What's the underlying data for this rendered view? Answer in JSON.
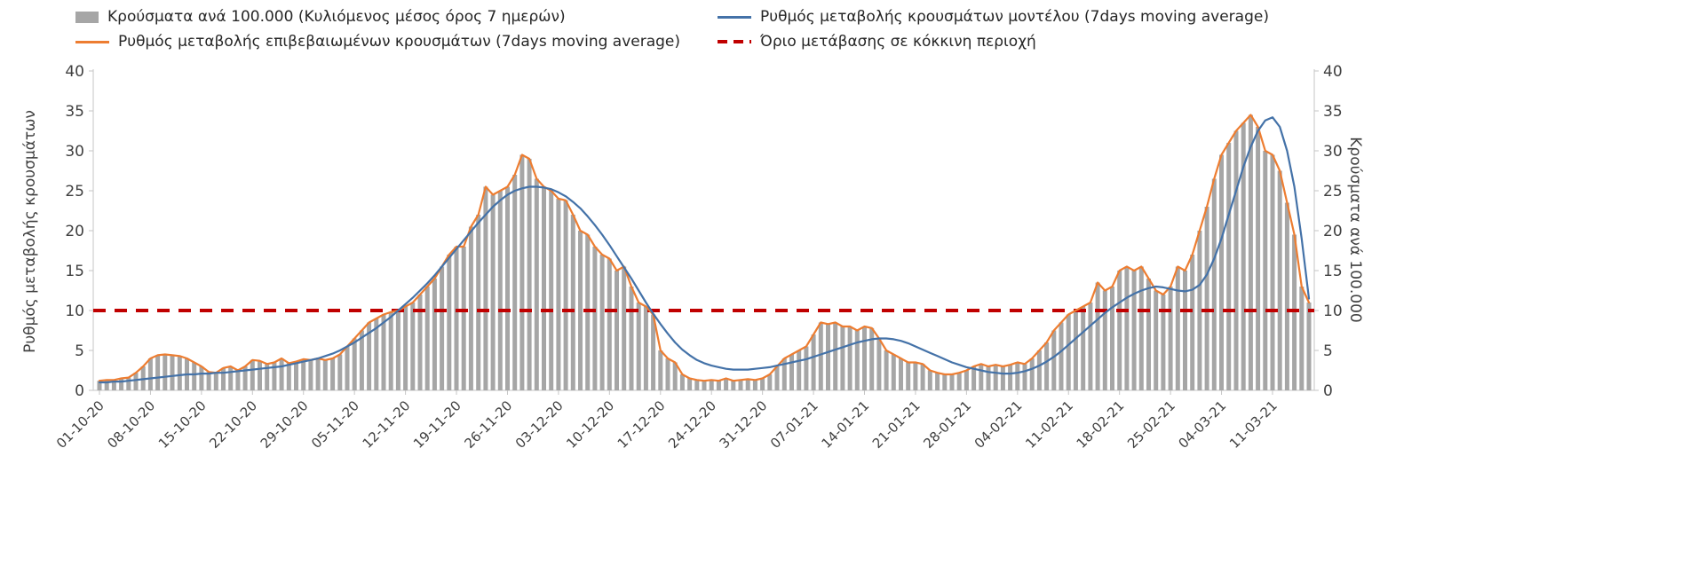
{
  "page": {
    "background": "#ffffff"
  },
  "legend": {
    "items": [
      {
        "label": "Κρούσματα ανά 100.000 (Κυλιόμενος μέσος όρος 7 ημερών)",
        "type": "bar",
        "color": "#a6a6a6"
      },
      {
        "label": "Ρυθμός μεταβολής κρουσμάτων μοντέλου (7days moving average)",
        "type": "line",
        "color": "#4472a8"
      },
      {
        "label": "Ρυθμός μεταβολής επιβεβαιωμένων κρουσμάτων (7days moving average)",
        "type": "line",
        "color": "#ed7d31"
      },
      {
        "label": "Όριο μετάβασης σε κόκκινη περιοχή",
        "type": "dashed",
        "color": "#c00000"
      }
    ]
  },
  "chart_data": {
    "type": "combo-bar-line",
    "left_axis": {
      "label": "Ρυθμός μεταβολής κρουσμάτων",
      "min": 0,
      "max": 40,
      "tick_step": 5,
      "ticks": [
        0,
        5,
        10,
        15,
        20,
        25,
        30,
        35,
        40
      ]
    },
    "right_axis": {
      "label": "Κρούσματα ανά 100.000",
      "min": 0,
      "max": 40,
      "tick_step": 5,
      "ticks": [
        0,
        5,
        10,
        15,
        20,
        25,
        30,
        35,
        40
      ]
    },
    "x_tick_labels": [
      "01-10-20",
      "08-10-20",
      "15-10-20",
      "22-10-20",
      "29-10-20",
      "05-11-20",
      "12-11-20",
      "19-11-20",
      "26-11-20",
      "03-12-20",
      "10-12-20",
      "17-12-20",
      "24-12-20",
      "31-12-20",
      "07-01-21",
      "14-01-21",
      "21-01-21",
      "28-01-21",
      "04-02-21",
      "11-02-21",
      "18-02-21",
      "25-02-21",
      "04-03-21",
      "11-03-21"
    ],
    "days_per_tick": 7,
    "grid": false,
    "legend_position": "top",
    "threshold": {
      "label": "Όριο μετάβασης σε κόκκινη περιοχή",
      "value": 10,
      "color": "#c00000",
      "style": "dashed"
    },
    "series": [
      {
        "name": "Κρούσματα ανά 100.000 (Κυλιόμενος μέσος όρος 7 ημερών)",
        "data_name": "cases-bars",
        "type": "bar",
        "axis": "right",
        "color": "#a6a6a6",
        "values": [
          1.2,
          1.3,
          1.3,
          1.5,
          1.6,
          2.2,
          3.0,
          4.0,
          4.4,
          4.5,
          4.4,
          4.3,
          4.0,
          3.5,
          3.0,
          2.3,
          2.2,
          2.8,
          3.0,
          2.5,
          3.0,
          3.8,
          3.7,
          3.3,
          3.5,
          4.0,
          3.4,
          3.6,
          3.9,
          3.8,
          4.0,
          3.8,
          4.0,
          4.5,
          5.5,
          6.5,
          7.5,
          8.5,
          9.0,
          9.5,
          9.8,
          10.0,
          10.5,
          11.0,
          12.0,
          13.0,
          14.0,
          15.5,
          17.0,
          18.0,
          18.0,
          20.5,
          22.0,
          25.5,
          24.5,
          25.0,
          25.5,
          27.0,
          29.5,
          29.0,
          26.5,
          25.5,
          25.0,
          24.0,
          23.8,
          22.0,
          20.0,
          19.5,
          18.0,
          17.0,
          16.5,
          15.0,
          15.5,
          13.0,
          11.0,
          10.5,
          9.5,
          5.0,
          4.0,
          3.5,
          2.0,
          1.5,
          1.3,
          1.2,
          1.3,
          1.2,
          1.5,
          1.2,
          1.3,
          1.4,
          1.3,
          1.5,
          2.0,
          3.0,
          4.0,
          4.5,
          5.0,
          5.5,
          7.0,
          8.5,
          8.3,
          8.5,
          8.0,
          8.0,
          7.5,
          8.0,
          7.8,
          6.5,
          5.0,
          4.5,
          4.0,
          3.5,
          3.5,
          3.3,
          2.5,
          2.2,
          2.0,
          2.0,
          2.2,
          2.5,
          3.0,
          3.3,
          3.0,
          3.2,
          3.0,
          3.2,
          3.5,
          3.3,
          4.0,
          5.0,
          6.0,
          7.5,
          8.5,
          9.5,
          10.0,
          10.5,
          11.0,
          13.5,
          12.5,
          13.0,
          15.0,
          15.5,
          15.0,
          15.5,
          14.0,
          12.5,
          12.0,
          13.0,
          15.5,
          15.0,
          17.0,
          20.0,
          23.0,
          26.5,
          29.5,
          31.0,
          32.5,
          33.5,
          34.5,
          33.0,
          30.0,
          29.5,
          27.5,
          23.5,
          19.5,
          13.0,
          11.0
        ]
      },
      {
        "name": "Ρυθμός μεταβολής επιβεβαιωμένων κρουσμάτων (7days moving average)",
        "data_name": "confirmed-rate-line",
        "type": "line",
        "axis": "left",
        "color": "#ed7d31",
        "values": [
          1.2,
          1.3,
          1.3,
          1.5,
          1.6,
          2.2,
          3.0,
          4.0,
          4.4,
          4.5,
          4.4,
          4.3,
          4.0,
          3.5,
          3.0,
          2.3,
          2.2,
          2.8,
          3.0,
          2.5,
          3.0,
          3.8,
          3.7,
          3.3,
          3.5,
          4.0,
          3.4,
          3.6,
          3.9,
          3.8,
          4.0,
          3.8,
          4.0,
          4.5,
          5.5,
          6.5,
          7.5,
          8.5,
          9.0,
          9.5,
          9.8,
          10.0,
          10.5,
          11.0,
          12.0,
          13.0,
          14.0,
          15.5,
          17.0,
          18.0,
          18.0,
          20.5,
          22.0,
          25.5,
          24.5,
          25.0,
          25.5,
          27.0,
          29.5,
          29.0,
          26.5,
          25.5,
          25.0,
          24.0,
          23.8,
          22.0,
          20.0,
          19.5,
          18.0,
          17.0,
          16.5,
          15.0,
          15.5,
          13.0,
          11.0,
          10.5,
          9.5,
          5.0,
          4.0,
          3.5,
          2.0,
          1.5,
          1.3,
          1.2,
          1.3,
          1.2,
          1.5,
          1.2,
          1.3,
          1.4,
          1.3,
          1.5,
          2.0,
          3.0,
          4.0,
          4.5,
          5.0,
          5.5,
          7.0,
          8.5,
          8.3,
          8.5,
          8.0,
          8.0,
          7.5,
          8.0,
          7.8,
          6.5,
          5.0,
          4.5,
          4.0,
          3.5,
          3.5,
          3.3,
          2.5,
          2.2,
          2.0,
          2.0,
          2.2,
          2.5,
          3.0,
          3.3,
          3.0,
          3.2,
          3.0,
          3.2,
          3.5,
          3.3,
          4.0,
          5.0,
          6.0,
          7.5,
          8.5,
          9.5,
          10.0,
          10.5,
          11.0,
          13.5,
          12.5,
          13.0,
          15.0,
          15.5,
          15.0,
          15.5,
          14.0,
          12.5,
          12.0,
          13.0,
          15.5,
          15.0,
          17.0,
          20.0,
          23.0,
          26.5,
          29.5,
          31.0,
          32.5,
          33.5,
          34.5,
          33.0,
          30.0,
          29.5,
          27.5,
          23.5,
          19.5,
          13.0,
          11.0
        ]
      },
      {
        "name": "Ρυθμός μεταβολής κρουσμάτων μοντέλου (7days moving average)",
        "data_name": "model-rate-line",
        "type": "line",
        "axis": "left",
        "color": "#4472a8",
        "values": [
          1.0,
          1.0,
          1.1,
          1.1,
          1.2,
          1.3,
          1.4,
          1.5,
          1.6,
          1.7,
          1.8,
          1.9,
          2.0,
          2.0,
          2.1,
          2.1,
          2.2,
          2.2,
          2.3,
          2.4,
          2.5,
          2.6,
          2.7,
          2.8,
          2.9,
          3.0,
          3.2,
          3.4,
          3.6,
          3.8,
          4.0,
          4.3,
          4.6,
          5.0,
          5.5,
          6.0,
          6.6,
          7.2,
          7.8,
          8.5,
          9.2,
          10.0,
          10.8,
          11.6,
          12.5,
          13.4,
          14.4,
          15.5,
          16.6,
          17.7,
          18.8,
          19.9,
          21.0,
          22.0,
          23.0,
          23.8,
          24.5,
          25.0,
          25.3,
          25.5,
          25.5,
          25.4,
          25.2,
          24.8,
          24.3,
          23.6,
          22.8,
          21.8,
          20.7,
          19.5,
          18.2,
          16.8,
          15.4,
          14.0,
          12.5,
          11.0,
          9.6,
          8.3,
          7.1,
          6.0,
          5.1,
          4.4,
          3.8,
          3.4,
          3.1,
          2.9,
          2.7,
          2.6,
          2.6,
          2.6,
          2.7,
          2.8,
          2.9,
          3.1,
          3.3,
          3.5,
          3.7,
          3.9,
          4.2,
          4.5,
          4.8,
          5.1,
          5.4,
          5.7,
          6.0,
          6.2,
          6.4,
          6.5,
          6.5,
          6.4,
          6.2,
          5.9,
          5.5,
          5.1,
          4.7,
          4.3,
          3.9,
          3.5,
          3.2,
          2.9,
          2.7,
          2.5,
          2.3,
          2.2,
          2.1,
          2.1,
          2.2,
          2.4,
          2.7,
          3.1,
          3.6,
          4.2,
          4.9,
          5.7,
          6.5,
          7.3,
          8.1,
          8.9,
          9.7,
          10.4,
          11.0,
          11.6,
          12.1,
          12.5,
          12.8,
          13.0,
          12.9,
          12.7,
          12.5,
          12.4,
          12.6,
          13.2,
          14.5,
          16.5,
          19.0,
          22.0,
          25.0,
          28.0,
          30.5,
          32.5,
          33.8,
          34.2,
          33.0,
          30.0,
          25.5,
          19.0,
          11.5
        ]
      }
    ]
  }
}
